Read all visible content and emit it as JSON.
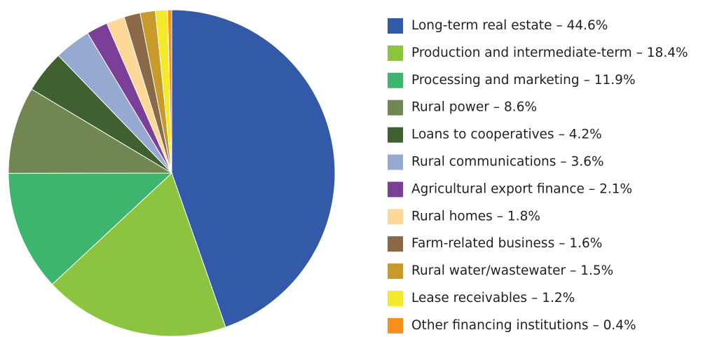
{
  "chart_data": {
    "type": "pie",
    "categories": [
      "Long-term real estate",
      "Production and intermediate-term",
      "Processing and marketing",
      "Rural power",
      "Loans to cooperatives",
      "Rural communications",
      "Agricultural export finance",
      "Rural homes",
      "Farm-related business",
      "Rural water/wastewater",
      "Lease receivables",
      "Other financing institutions"
    ],
    "values": [
      44.6,
      18.4,
      11.9,
      8.6,
      4.2,
      3.6,
      2.1,
      1.8,
      1.6,
      1.5,
      1.2,
      0.4
    ],
    "value_labels": [
      "– 44.6%",
      "– 18.4%",
      "– 11.9%",
      "– 8.6%",
      "– 4.2%",
      "– 3.6%",
      "– 2.1%",
      "– 1.8%",
      "– 1.6%",
      "– 1.5%",
      "– 1.2%",
      "– 0.4%"
    ],
    "colors": [
      "#335aa8",
      "#8cc43f",
      "#3db56f",
      "#728652",
      "#3f6130",
      "#95a9d1",
      "#7b3f98",
      "#fdd899",
      "#8b6947",
      "#c79a2a",
      "#f4e92a",
      "#f7901e"
    ],
    "legend": "right"
  }
}
